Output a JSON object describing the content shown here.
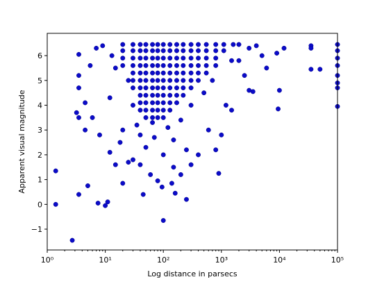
{
  "chart_data": {
    "type": "scatter",
    "xlabel": "Log distance in parsecs",
    "ylabel": "Apparent visual magnitude",
    "xscale": "log",
    "color": "#0b0bc8",
    "xlim": [
      1,
      100000
    ],
    "ylim": [
      -1.84,
      6.9
    ],
    "xticks": [
      {
        "value": 1,
        "label": "10⁰"
      },
      {
        "value": 10,
        "label": "10¹"
      },
      {
        "value": 100,
        "label": "10²"
      },
      {
        "value": 1000,
        "label": "10³"
      },
      {
        "value": 10000,
        "label": "10⁴"
      },
      {
        "value": 100000,
        "label": "10⁵"
      }
    ],
    "yticks": [
      {
        "value": -1,
        "label": "−1"
      },
      0,
      1,
      2,
      3,
      4,
      5,
      6
    ],
    "x": [
      20,
      20,
      20,
      20,
      30,
      30,
      30,
      30,
      30,
      30,
      30,
      40,
      40,
      40,
      40,
      40,
      40,
      40,
      40,
      40,
      40,
      50,
      50,
      50,
      50,
      50,
      50,
      50,
      50,
      50,
      50,
      50,
      65,
      65,
      65,
      65,
      65,
      65,
      65,
      65,
      65,
      65,
      65,
      65,
      80,
      80,
      80,
      80,
      80,
      80,
      80,
      80,
      80,
      80,
      80,
      100,
      100,
      100,
      100,
      100,
      100,
      100,
      100,
      100,
      100,
      100,
      130,
      130,
      130,
      130,
      130,
      130,
      130,
      130,
      130,
      130,
      170,
      170,
      170,
      170,
      170,
      170,
      170,
      170,
      170,
      220,
      220,
      220,
      220,
      220,
      220,
      220,
      220,
      300,
      300,
      300,
      300,
      300,
      300,
      300,
      400,
      400,
      400,
      400,
      400,
      400,
      550,
      550,
      550,
      550,
      550,
      800,
      800,
      800,
      800,
      1100,
      1100,
      1600,
      1.4,
      1.4,
      2.7,
      3.5,
      5,
      7.5,
      10,
      11,
      100,
      250,
      45,
      80,
      95,
      140,
      160,
      900,
      20,
      3.2,
      3.5,
      3.5,
      3.5,
      3.5,
      4.5,
      4.5,
      5.5,
      6,
      7,
      8,
      9,
      9000,
      9500,
      10000,
      12000,
      35000,
      35000,
      35000,
      50000,
      100000,
      100000,
      100000,
      100000,
      100000,
      100000,
      100000,
      100000,
      3500,
      3000,
      800,
      1000,
      600,
      400,
      300,
      250,
      200,
      150,
      60,
      40,
      30,
      25,
      15,
      12,
      18,
      20,
      12,
      15,
      13,
      25,
      30,
      35,
      40,
      50,
      70,
      100,
      120,
      150,
      200,
      300,
      500,
      700,
      1500,
      2000,
      2500,
      4000,
      5000,
      6000,
      1200,
      1500,
      2000,
      3000
    ],
    "values": [
      6.45,
      6.2,
      5.9,
      5.6,
      6.45,
      6.2,
      5.9,
      5.6,
      5.3,
      5.0,
      4.7,
      6.45,
      6.2,
      5.9,
      5.6,
      5.3,
      5.0,
      4.7,
      4.4,
      4.1,
      3.8,
      6.45,
      6.2,
      5.9,
      5.6,
      5.3,
      5.0,
      4.7,
      4.4,
      4.1,
      3.8,
      3.5,
      6.45,
      6.2,
      5.9,
      5.6,
      5.3,
      5.0,
      4.7,
      4.4,
      4.1,
      3.8,
      3.5,
      3.3,
      6.45,
      6.2,
      5.9,
      5.6,
      5.3,
      5.0,
      4.7,
      4.4,
      4.1,
      3.8,
      3.5,
      6.45,
      6.2,
      5.9,
      5.6,
      5.3,
      5.0,
      4.7,
      4.4,
      4.1,
      3.8,
      3.5,
      6.45,
      6.2,
      5.9,
      5.6,
      5.3,
      5.0,
      4.7,
      4.4,
      4.1,
      3.8,
      6.45,
      6.2,
      5.9,
      5.6,
      5.3,
      5.0,
      4.7,
      4.4,
      4.1,
      6.45,
      6.2,
      5.9,
      5.6,
      5.3,
      5.0,
      4.7,
      4.4,
      6.45,
      6.2,
      5.9,
      5.6,
      5.3,
      5.0,
      4.7,
      6.45,
      6.2,
      5.9,
      5.6,
      5.3,
      5.0,
      6.45,
      6.2,
      5.9,
      5.6,
      5.3,
      6.45,
      6.2,
      5.9,
      5.6,
      6.45,
      6.2,
      6.45,
      1.35,
      0,
      -1.45,
      0.4,
      0.75,
      0.05,
      -0.05,
      0.1,
      -0.65,
      0.2,
      0.4,
      0.95,
      0.7,
      0.85,
      0.45,
      1.25,
      0.85,
      3.7,
      3.5,
      4.7,
      5.2,
      6.05,
      4.1,
      3.0,
      5.6,
      3.5,
      6.3,
      2.8,
      6.4,
      6.1,
      3.85,
      4.6,
      6.3,
      6.4,
      6.3,
      5.45,
      5.45,
      6.45,
      6.2,
      5.9,
      5.6,
      5.2,
      4.9,
      4.7,
      3.95,
      4.55,
      4.6,
      2.2,
      2.8,
      3.0,
      2.0,
      1.6,
      2.2,
      1.2,
      1.5,
      1.2,
      1.6,
      1.8,
      1.7,
      1.6,
      2.1,
      2.5,
      3.0,
      4.3,
      5.5,
      6.0,
      5.0,
      4.0,
      3.2,
      2.8,
      2.3,
      2.7,
      2.0,
      3.1,
      2.6,
      3.4,
      4.0,
      4.5,
      5.0,
      5.8,
      5.8,
      5.2,
      6.4,
      6.0,
      5.5,
      4.0,
      3.8,
      6.45,
      6.3
    ]
  }
}
